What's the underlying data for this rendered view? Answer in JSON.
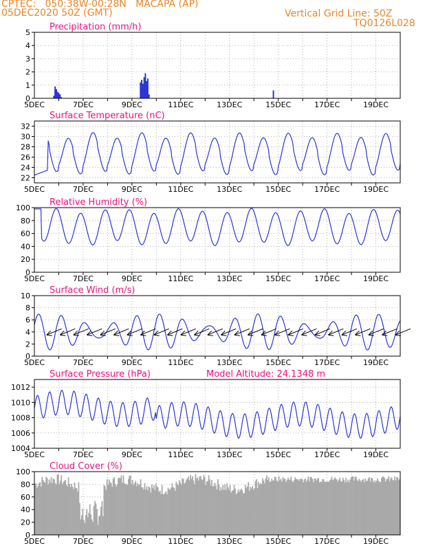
{
  "header": {
    "line1": "CPTEC:   050:38W-00:28N   MACAPA (AP)",
    "line2": "05DEC2020 50Z (GMT)",
    "right1": "Vertical Grid Line: 50Z",
    "right2": "TQ0126L028"
  },
  "colors": {
    "header": "#e8862a",
    "title": "#e8117f",
    "line": "#2a35d6",
    "cloud": "#a9a9a9",
    "frame": "#000000",
    "grid": "#9a9a9a"
  },
  "x_tick_labels": [
    "5DEC",
    "7DEC",
    "9DEC",
    "11DEC",
    "13DEC",
    "15DEC",
    "17DEC",
    "19DEC"
  ],
  "chart_data": [
    {
      "type": "bar",
      "title": "Precipitation (mm/h)",
      "ylim": [
        0,
        5
      ],
      "yticks": [
        0,
        1,
        2,
        3,
        4,
        5
      ],
      "x_days": [
        0.8,
        0.85,
        0.9,
        0.95,
        1.0,
        1.05,
        1.1,
        4.35,
        4.4,
        4.45,
        4.5,
        4.55,
        4.6,
        4.65,
        4.7,
        9.8
      ],
      "values": [
        0.2,
        0.9,
        0.7,
        0.5,
        0.4,
        0.3,
        0.1,
        1.2,
        1.4,
        1.1,
        1.6,
        1.9,
        1.3,
        1.5,
        0.3,
        0.6
      ]
    },
    {
      "type": "line",
      "title": "Surface Temperature (nC)",
      "ylim": [
        21,
        33
      ],
      "yticks": [
        22,
        24,
        26,
        28,
        30,
        32
      ],
      "series": [
        {
          "period_days": 1,
          "base": 27,
          "amplitude": 3.2,
          "start": 22.5
        }
      ]
    },
    {
      "type": "line",
      "title": "Relative Humidity (%)",
      "ylim": [
        0,
        100
      ],
      "yticks": [
        0,
        20,
        40,
        60,
        80,
        100
      ],
      "series": [
        {
          "period_days": 1,
          "base": 70,
          "amplitude": 25
        }
      ]
    },
    {
      "type": "line",
      "title": "Surface Wind (m/s)",
      "ylim": [
        0,
        10
      ],
      "yticks": [
        0,
        2,
        4,
        6,
        8,
        10
      ],
      "series": [
        {
          "period_days": 1,
          "base": 4,
          "amplitude": 2
        }
      ],
      "barbs": true
    },
    {
      "type": "line",
      "title": "Surface Pressure (hPa)",
      "annotation": "Model Altitude: 24.1348 m",
      "ylim": [
        1004,
        1013
      ],
      "yticks": [
        1004,
        1006,
        1008,
        1010,
        1012
      ],
      "series": [
        {
          "period_days": 0.5,
          "base": 1008,
          "amplitude": 1.6
        }
      ]
    },
    {
      "type": "area",
      "title": "Cloud Cover (%)",
      "ylim": [
        0,
        100
      ],
      "yticks": [
        0,
        20,
        40,
        60,
        80,
        100
      ],
      "series": [
        {
          "base": 80
        }
      ]
    }
  ]
}
